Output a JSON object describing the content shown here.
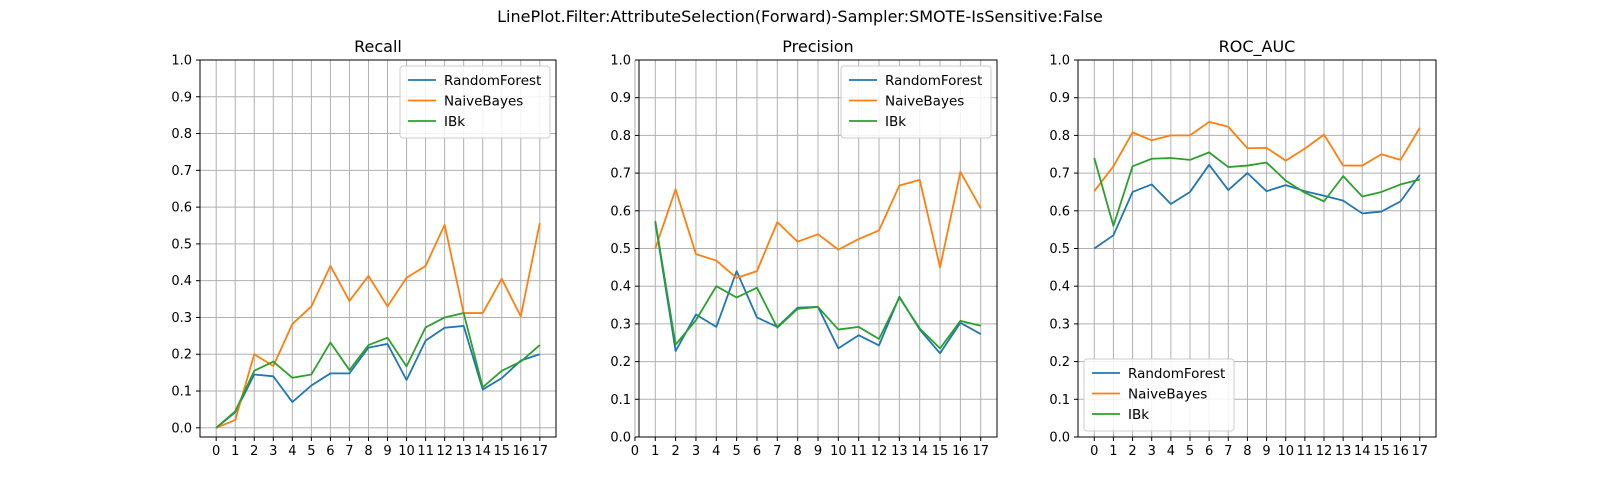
{
  "figure": {
    "title": "LinePlot.Filter:AttributeSelection(Forward)-Sampler:SMOTE-IsSensitive:False"
  },
  "series_colors": {
    "RandomForest": "#1f77b4",
    "NaiveBayes": "#ff7f0e",
    "IBk": "#2ca02c"
  },
  "chart_data": [
    {
      "type": "line",
      "title": "Recall",
      "xlabel": "",
      "ylabel": "",
      "xlim": [
        -0.85,
        17.85
      ],
      "ylim": [
        -0.025,
        1.0
      ],
      "xticks": [
        "0",
        "1",
        "2",
        "3",
        "4",
        "5",
        "6",
        "7",
        "8",
        "9",
        "10",
        "11",
        "12",
        "13",
        "14",
        "15",
        "16",
        "17"
      ],
      "yticks": [
        "0.0",
        "0.1",
        "0.2",
        "0.3",
        "0.4",
        "0.5",
        "0.6",
        "0.7",
        "0.8",
        "0.9",
        "1.0"
      ],
      "grid": true,
      "legend": "upper right",
      "x": [
        0,
        1,
        2,
        3,
        4,
        5,
        6,
        7,
        8,
        9,
        10,
        11,
        12,
        13,
        14,
        15,
        16,
        17
      ],
      "series": [
        {
          "name": "RandomForest",
          "values": [
            0.0,
            0.042,
            0.145,
            0.14,
            0.07,
            0.115,
            0.148,
            0.148,
            0.218,
            0.228,
            0.13,
            0.237,
            0.272,
            0.277,
            0.104,
            0.135,
            0.183,
            0.2
          ]
        },
        {
          "name": "NaiveBayes",
          "values": [
            0.0,
            0.021,
            0.2,
            0.168,
            0.282,
            0.33,
            0.44,
            0.345,
            0.413,
            0.33,
            0.408,
            0.44,
            0.552,
            0.312,
            0.312,
            0.405,
            0.303,
            0.557
          ]
        },
        {
          "name": "IBk",
          "values": [
            0.0,
            0.045,
            0.155,
            0.18,
            0.136,
            0.145,
            0.232,
            0.157,
            0.225,
            0.245,
            0.167,
            0.273,
            0.3,
            0.312,
            0.11,
            0.155,
            0.18,
            0.225
          ]
        }
      ]
    },
    {
      "type": "line",
      "title": "Precision",
      "xlabel": "",
      "ylabel": "",
      "xlim": [
        0.2,
        17.8
      ],
      "ylim": [
        0.0,
        1.0
      ],
      "xticks": [
        "0",
        "1",
        "2",
        "3",
        "4",
        "5",
        "6",
        "7",
        "8",
        "9",
        "10",
        "11",
        "12",
        "13",
        "14",
        "15",
        "16",
        "17"
      ],
      "yticks": [
        "0.0",
        "0.1",
        "0.2",
        "0.3",
        "0.4",
        "0.5",
        "0.6",
        "0.7",
        "0.8",
        "0.9",
        "1.0"
      ],
      "grid": true,
      "legend": "upper right",
      "x": [
        1,
        2,
        3,
        4,
        5,
        6,
        7,
        8,
        9,
        10,
        11,
        12,
        13,
        14,
        15,
        16,
        17
      ],
      "series": [
        {
          "name": "RandomForest",
          "values": [
            0.57,
            0.228,
            0.325,
            0.292,
            0.44,
            0.317,
            0.292,
            0.343,
            0.345,
            0.235,
            0.27,
            0.243,
            0.372,
            0.285,
            0.222,
            0.303,
            0.273
          ]
        },
        {
          "name": "NaiveBayes",
          "values": [
            0.5,
            0.657,
            0.485,
            0.468,
            0.422,
            0.44,
            0.57,
            0.518,
            0.538,
            0.497,
            0.525,
            0.548,
            0.667,
            0.682,
            0.45,
            0.703,
            0.607
          ]
        },
        {
          "name": "IBk",
          "values": [
            0.573,
            0.245,
            0.31,
            0.4,
            0.37,
            0.396,
            0.29,
            0.34,
            0.345,
            0.285,
            0.292,
            0.26,
            0.37,
            0.288,
            0.235,
            0.308,
            0.295
          ]
        }
      ]
    },
    {
      "type": "line",
      "title": "ROC_AUC",
      "xlabel": "",
      "ylabel": "",
      "xlim": [
        -0.85,
        17.85
      ],
      "ylim": [
        0.0,
        1.0
      ],
      "xticks": [
        "0",
        "1",
        "2",
        "3",
        "4",
        "5",
        "6",
        "7",
        "8",
        "9",
        "10",
        "11",
        "12",
        "13",
        "14",
        "15",
        "16",
        "17"
      ],
      "yticks": [
        "0.0",
        "0.1",
        "0.2",
        "0.3",
        "0.4",
        "0.5",
        "0.6",
        "0.7",
        "0.8",
        "0.9",
        "1.0"
      ],
      "grid": true,
      "legend": "lower left",
      "x": [
        0,
        1,
        2,
        3,
        4,
        5,
        6,
        7,
        8,
        9,
        10,
        11,
        12,
        13,
        14,
        15,
        16,
        17
      ],
      "series": [
        {
          "name": "RandomForest",
          "values": [
            0.5,
            0.535,
            0.65,
            0.67,
            0.618,
            0.65,
            0.722,
            0.655,
            0.7,
            0.652,
            0.668,
            0.652,
            0.64,
            0.627,
            0.593,
            0.598,
            0.625,
            0.695
          ]
        },
        {
          "name": "NaiveBayes",
          "values": [
            0.652,
            0.718,
            0.808,
            0.787,
            0.8,
            0.8,
            0.836,
            0.823,
            0.766,
            0.767,
            0.733,
            0.765,
            0.802,
            0.72,
            0.72,
            0.75,
            0.735,
            0.82
          ]
        },
        {
          "name": "IBk",
          "values": [
            0.74,
            0.56,
            0.718,
            0.738,
            0.74,
            0.735,
            0.755,
            0.716,
            0.72,
            0.728,
            0.68,
            0.648,
            0.625,
            0.692,
            0.638,
            0.65,
            0.67,
            0.683
          ]
        }
      ]
    }
  ]
}
